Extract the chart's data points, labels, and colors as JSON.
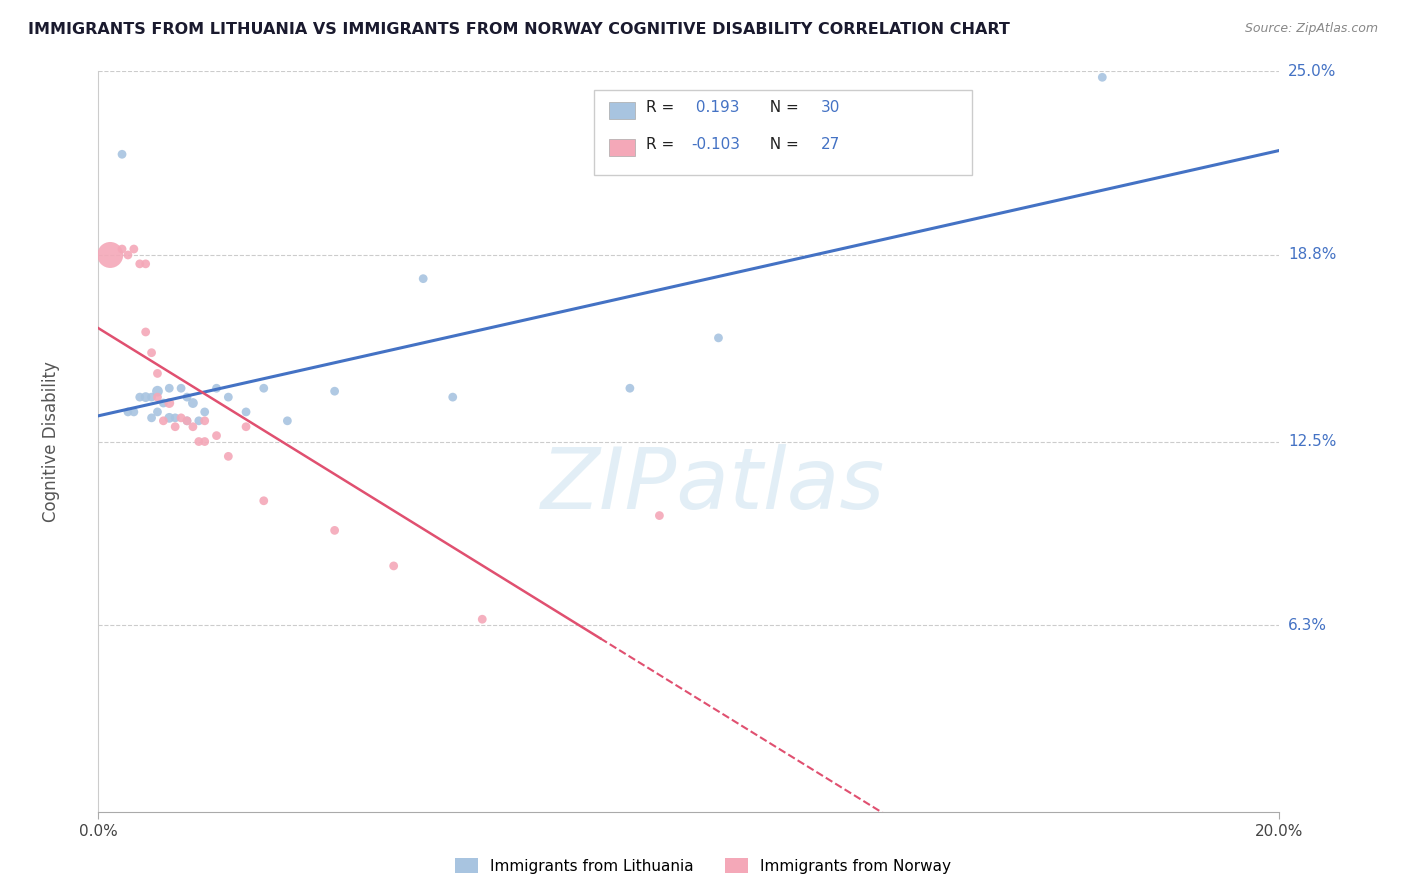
{
  "title": "IMMIGRANTS FROM LITHUANIA VS IMMIGRANTS FROM NORWAY COGNITIVE DISABILITY CORRELATION CHART",
  "source": "Source: ZipAtlas.com",
  "ylabel_label": "Cognitive Disability",
  "r_lithuania": 0.193,
  "n_lithuania": 30,
  "r_norway": -0.103,
  "n_norway": 27,
  "xmin": 0.0,
  "xmax": 0.2,
  "ymin": 0.0,
  "ymax": 0.25,
  "yticks": [
    0.063,
    0.125,
    0.188,
    0.25
  ],
  "ytick_labels": [
    "6.3%",
    "12.5%",
    "18.8%",
    "25.0%"
  ],
  "grid_color": "#cccccc",
  "background_color": "#ffffff",
  "color_lithuania": "#a8c4e0",
  "color_norway": "#f4a8b8",
  "line_color_lithuania": "#4472c4",
  "line_color_norway": "#e05070",
  "legend_label_lithuania": "Immigrants from Lithuania",
  "legend_label_norway": "Immigrants from Norway",
  "scatter_lithuania_x": [
    0.004,
    0.005,
    0.006,
    0.007,
    0.008,
    0.009,
    0.009,
    0.01,
    0.01,
    0.011,
    0.012,
    0.012,
    0.013,
    0.014,
    0.015,
    0.015,
    0.016,
    0.017,
    0.018,
    0.02,
    0.022,
    0.025,
    0.028,
    0.032,
    0.04,
    0.055,
    0.06,
    0.09,
    0.105,
    0.17
  ],
  "scatter_lithuania_y": [
    0.222,
    0.135,
    0.135,
    0.14,
    0.14,
    0.133,
    0.14,
    0.142,
    0.135,
    0.138,
    0.133,
    0.143,
    0.133,
    0.143,
    0.132,
    0.14,
    0.138,
    0.132,
    0.135,
    0.143,
    0.14,
    0.135,
    0.143,
    0.132,
    0.142,
    0.18,
    0.14,
    0.143,
    0.16,
    0.248
  ],
  "scatter_lithuania_size": [
    40,
    40,
    40,
    40,
    50,
    40,
    40,
    60,
    40,
    40,
    50,
    40,
    40,
    40,
    40,
    40,
    50,
    40,
    40,
    40,
    40,
    40,
    40,
    40,
    40,
    40,
    40,
    40,
    40,
    40
  ],
  "scatter_norway_x": [
    0.002,
    0.004,
    0.005,
    0.006,
    0.007,
    0.008,
    0.008,
    0.009,
    0.01,
    0.01,
    0.011,
    0.012,
    0.013,
    0.014,
    0.015,
    0.016,
    0.017,
    0.018,
    0.018,
    0.02,
    0.022,
    0.025,
    0.028,
    0.04,
    0.05,
    0.065,
    0.095
  ],
  "scatter_norway_y": [
    0.188,
    0.19,
    0.188,
    0.19,
    0.185,
    0.162,
    0.185,
    0.155,
    0.148,
    0.14,
    0.132,
    0.138,
    0.13,
    0.133,
    0.132,
    0.13,
    0.125,
    0.125,
    0.132,
    0.127,
    0.12,
    0.13,
    0.105,
    0.095,
    0.083,
    0.065,
    0.1
  ],
  "scatter_norway_size": [
    350,
    40,
    40,
    40,
    40,
    40,
    40,
    40,
    40,
    40,
    40,
    50,
    40,
    40,
    40,
    40,
    40,
    40,
    40,
    40,
    40,
    40,
    40,
    40,
    40,
    40,
    40
  ]
}
